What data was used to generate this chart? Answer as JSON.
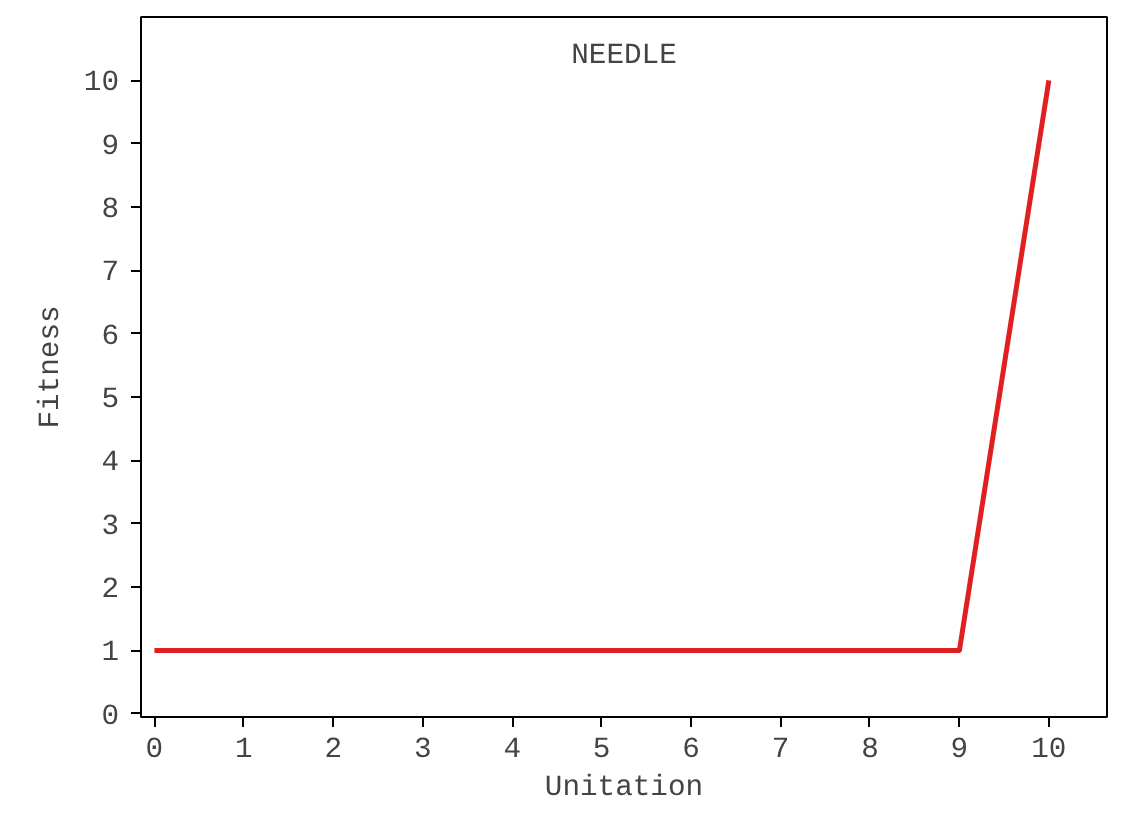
{
  "chart_data": {
    "type": "line",
    "title": "NEEDLE",
    "xlabel": "Unitation",
    "ylabel": "Fitness",
    "x": [
      0,
      1,
      2,
      3,
      4,
      5,
      6,
      7,
      8,
      9,
      10
    ],
    "series": [
      {
        "color": "#e02020",
        "values": [
          1,
          1,
          1,
          1,
          1,
          1,
          1,
          1,
          1,
          1,
          10
        ]
      }
    ],
    "xlim": [
      -0.15,
      10.65
    ],
    "ylim": [
      -0.05,
      11
    ],
    "xticks": [
      0,
      1,
      2,
      3,
      4,
      5,
      6,
      7,
      8,
      9,
      10
    ],
    "yticks": [
      0,
      1,
      2,
      3,
      4,
      5,
      6,
      7,
      8,
      9,
      10
    ],
    "grid": false,
    "marker": "none",
    "line_style": "solid"
  }
}
